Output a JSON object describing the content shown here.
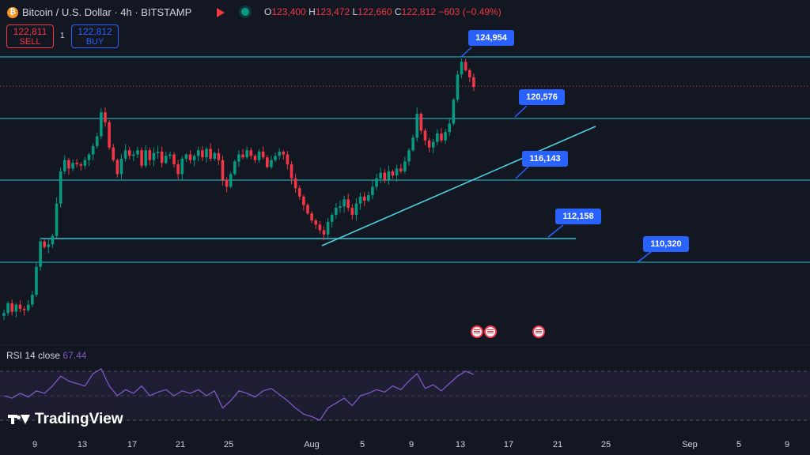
{
  "header": {
    "symbol": "Bitcoin / U.S. Dollar · 4h · BITSTAMP",
    "icon": "bitcoin-icon",
    "ohlc": {
      "o_label": "O",
      "o": "123,400",
      "h_label": "H",
      "h": "123,472",
      "l_label": "L",
      "l": "122,660",
      "c_label": "C",
      "c": "122,812",
      "change": "−603 (−0.49%)"
    }
  },
  "trade": {
    "sell_price": "122,811",
    "sell_label": "SELL",
    "buy_price": "122,812",
    "buy_label": "BUY",
    "spread": "1"
  },
  "callouts": [
    "124,954",
    "120,576",
    "116,143",
    "112,158",
    "110,320"
  ],
  "rsi": {
    "label": "RSI 14 close",
    "value": "67.44"
  },
  "branding": {
    "logo_text": "TradingView"
  },
  "colors": {
    "up": "#089981",
    "down": "#f23645",
    "level": "#26c6da",
    "callout": "#2962ff",
    "rsi": "#7e57c2"
  },
  "chart_data": {
    "type": "candlestick",
    "symbol": "BTCUSD",
    "interval": "4h",
    "x_ticks": [
      "9",
      "13",
      "17",
      "21",
      "25",
      "Aug",
      "5",
      "9",
      "13",
      "17",
      "21",
      "25",
      "Sep",
      "5",
      "9"
    ],
    "horizontal_levels": [
      124954,
      120576,
      116143,
      112158,
      110320
    ],
    "current_price": 122812,
    "trend_line": {
      "from": [
        "Aug 2",
        111700
      ],
      "to": [
        "Aug 25",
        120000
      ]
    },
    "close_path": [
      [
        0,
        106700
      ],
      [
        2,
        107400
      ],
      [
        4,
        106800
      ],
      [
        6,
        107300
      ],
      [
        8,
        107000
      ],
      [
        10,
        106900
      ],
      [
        12,
        107300
      ],
      [
        14,
        108000
      ],
      [
        16,
        110000
      ],
      [
        18,
        111800
      ],
      [
        20,
        111400
      ],
      [
        22,
        111600
      ],
      [
        24,
        112200
      ],
      [
        26,
        114500
      ],
      [
        28,
        116800
      ],
      [
        30,
        117600
      ],
      [
        32,
        117000
      ],
      [
        34,
        117400
      ],
      [
        36,
        117300
      ],
      [
        38,
        117200
      ],
      [
        40,
        117600
      ],
      [
        42,
        118000
      ],
      [
        44,
        118600
      ],
      [
        46,
        119300
      ],
      [
        48,
        121000
      ],
      [
        50,
        120300
      ],
      [
        52,
        118500
      ],
      [
        54,
        117600
      ],
      [
        56,
        116600
      ],
      [
        58,
        117700
      ],
      [
        60,
        118300
      ],
      [
        62,
        117900
      ],
      [
        64,
        118000
      ],
      [
        66,
        118300
      ],
      [
        68,
        117200
      ],
      [
        70,
        118300
      ],
      [
        72,
        117600
      ],
      [
        74,
        118100
      ],
      [
        76,
        118200
      ],
      [
        78,
        117400
      ],
      [
        80,
        117900
      ],
      [
        82,
        118000
      ],
      [
        84,
        117300
      ],
      [
        86,
        116600
      ],
      [
        88,
        117700
      ],
      [
        90,
        118000
      ],
      [
        92,
        117600
      ],
      [
        94,
        117900
      ],
      [
        96,
        118300
      ],
      [
        98,
        117800
      ],
      [
        100,
        118400
      ],
      [
        102,
        117700
      ],
      [
        104,
        118100
      ],
      [
        106,
        117600
      ],
      [
        108,
        116200
      ],
      [
        110,
        115700
      ],
      [
        112,
        116600
      ],
      [
        114,
        117500
      ],
      [
        116,
        118000
      ],
      [
        118,
        117800
      ],
      [
        120,
        118300
      ],
      [
        122,
        117900
      ],
      [
        124,
        117600
      ],
      [
        126,
        118200
      ],
      [
        128,
        117800
      ],
      [
        130,
        117100
      ],
      [
        132,
        117600
      ],
      [
        134,
        117900
      ],
      [
        136,
        118200
      ],
      [
        138,
        118000
      ],
      [
        140,
        117300
      ],
      [
        142,
        116300
      ],
      [
        144,
        115600
      ],
      [
        146,
        115000
      ],
      [
        148,
        114400
      ],
      [
        150,
        113800
      ],
      [
        152,
        113300
      ],
      [
        154,
        113000
      ],
      [
        156,
        112600
      ],
      [
        158,
        112300
      ],
      [
        160,
        113200
      ],
      [
        162,
        113700
      ],
      [
        164,
        114200
      ],
      [
        166,
        114300
      ],
      [
        168,
        114800
      ],
      [
        170,
        114200
      ],
      [
        172,
        113700
      ],
      [
        174,
        114500
      ],
      [
        176,
        115000
      ],
      [
        178,
        114700
      ],
      [
        180,
        115100
      ],
      [
        182,
        115700
      ],
      [
        184,
        116300
      ],
      [
        186,
        116700
      ],
      [
        188,
        116200
      ],
      [
        190,
        116800
      ],
      [
        192,
        116500
      ],
      [
        194,
        117000
      ],
      [
        196,
        116800
      ],
      [
        198,
        117500
      ],
      [
        200,
        118300
      ],
      [
        202,
        119200
      ],
      [
        204,
        120900
      ],
      [
        206,
        119700
      ],
      [
        208,
        119000
      ],
      [
        210,
        118500
      ],
      [
        212,
        118900
      ],
      [
        214,
        119500
      ],
      [
        216,
        119000
      ],
      [
        218,
        119600
      ],
      [
        220,
        120200
      ],
      [
        222,
        121900
      ],
      [
        224,
        123700
      ],
      [
        226,
        124600
      ],
      [
        228,
        124000
      ],
      [
        230,
        123500
      ],
      [
        232,
        122812
      ]
    ],
    "rsi_path": [
      [
        0,
        50
      ],
      [
        4,
        48
      ],
      [
        8,
        52
      ],
      [
        12,
        49
      ],
      [
        16,
        54
      ],
      [
        20,
        52
      ],
      [
        24,
        58
      ],
      [
        28,
        66
      ],
      [
        32,
        62
      ],
      [
        36,
        60
      ],
      [
        40,
        58
      ],
      [
        44,
        68
      ],
      [
        48,
        72
      ],
      [
        52,
        58
      ],
      [
        56,
        50
      ],
      [
        60,
        55
      ],
      [
        64,
        52
      ],
      [
        68,
        58
      ],
      [
        72,
        50
      ],
      [
        76,
        53
      ],
      [
        80,
        55
      ],
      [
        84,
        50
      ],
      [
        88,
        54
      ],
      [
        92,
        52
      ],
      [
        96,
        55
      ],
      [
        100,
        50
      ],
      [
        104,
        54
      ],
      [
        108,
        40
      ],
      [
        112,
        46
      ],
      [
        116,
        54
      ],
      [
        120,
        52
      ],
      [
        124,
        49
      ],
      [
        128,
        54
      ],
      [
        132,
        56
      ],
      [
        136,
        51
      ],
      [
        140,
        46
      ],
      [
        144,
        40
      ],
      [
        148,
        35
      ],
      [
        152,
        33
      ],
      [
        156,
        30
      ],
      [
        160,
        40
      ],
      [
        164,
        44
      ],
      [
        168,
        48
      ],
      [
        172,
        42
      ],
      [
        176,
        50
      ],
      [
        180,
        52
      ],
      [
        184,
        55
      ],
      [
        188,
        53
      ],
      [
        192,
        58
      ],
      [
        196,
        55
      ],
      [
        200,
        62
      ],
      [
        204,
        68
      ],
      [
        208,
        56
      ],
      [
        212,
        59
      ],
      [
        216,
        54
      ],
      [
        220,
        60
      ],
      [
        224,
        66
      ],
      [
        228,
        70
      ],
      [
        232,
        67.44
      ]
    ]
  }
}
